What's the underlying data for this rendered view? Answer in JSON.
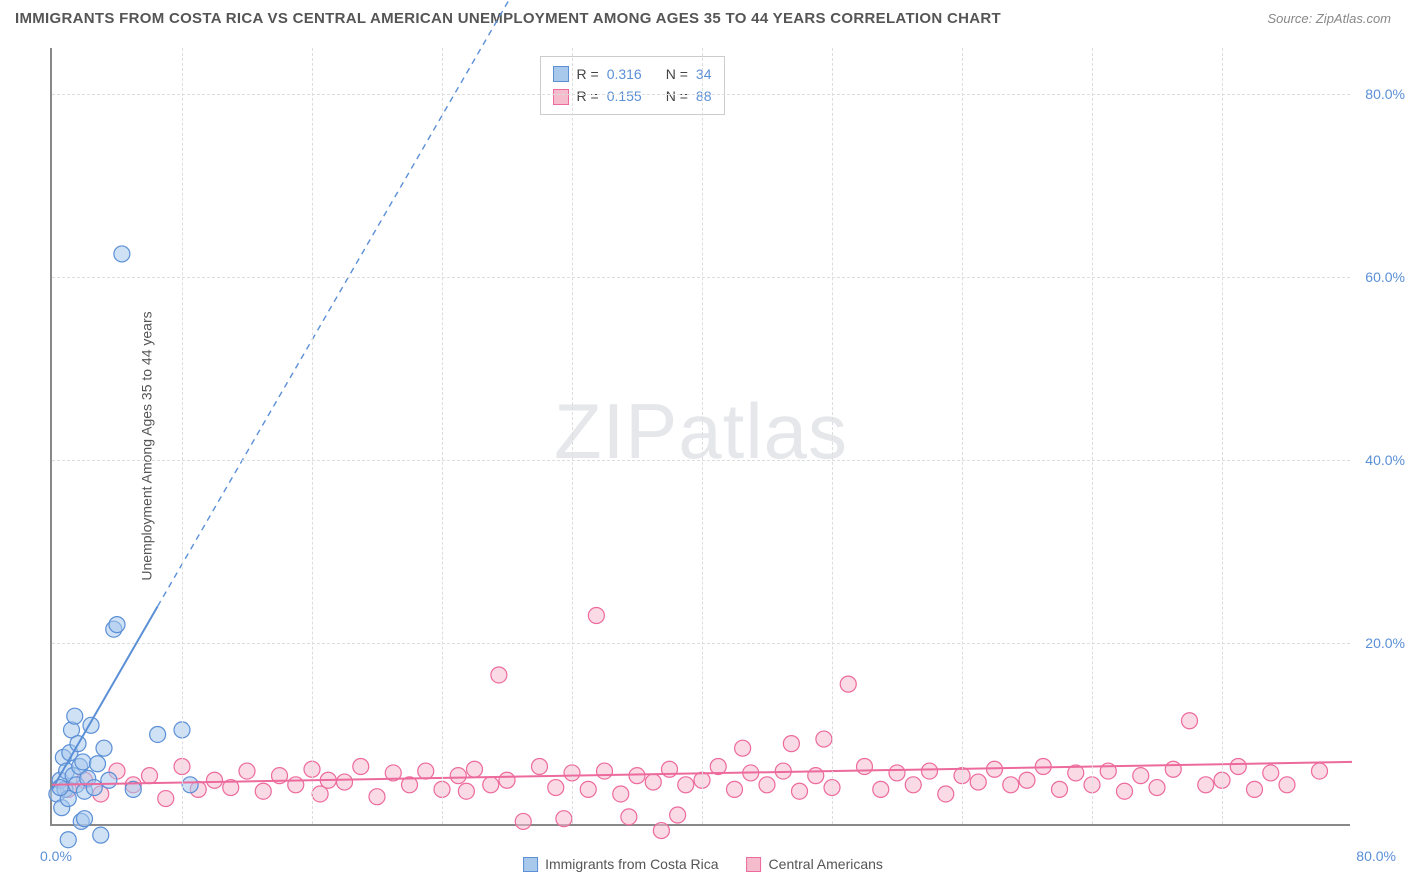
{
  "title": "IMMIGRANTS FROM COSTA RICA VS CENTRAL AMERICAN UNEMPLOYMENT AMONG AGES 35 TO 44 YEARS CORRELATION CHART",
  "source_label": "Source: ZipAtlas.com",
  "y_axis_label": "Unemployment Among Ages 35 to 44 years",
  "chart": {
    "type": "scatter",
    "xlim": [
      0,
      80
    ],
    "ylim": [
      0,
      85
    ],
    "x_tick_step": 8,
    "y_ticks": [
      20,
      40,
      60,
      80
    ],
    "y_tick_labels": [
      "20.0%",
      "40.0%",
      "60.0%",
      "80.0%"
    ],
    "x_origin_label": "0.0%",
    "x_max_label": "80.0%",
    "background_color": "#ffffff",
    "grid_color": "#dddddd",
    "axis_color": "#888888",
    "tick_label_color": "#5b8fd6",
    "marker_radius": 8,
    "marker_opacity": 0.55,
    "line_width": 2,
    "dashed_pattern": "6,5"
  },
  "series": {
    "blue": {
      "label": "Immigrants from Costa Rica",
      "fill": "#a8c8ec",
      "stroke": "#5b8fd6",
      "r_value": "0.316",
      "n_value": "34",
      "trend": {
        "x1": 0,
        "y1": 4,
        "x2": 6.5,
        "y2": 24,
        "dash_x2": 30,
        "dash_y2": 96
      },
      "points": [
        [
          0.3,
          3.5
        ],
        [
          0.5,
          5.0
        ],
        [
          0.6,
          2.0
        ],
        [
          0.7,
          7.5
        ],
        [
          0.8,
          4.0
        ],
        [
          0.9,
          6.0
        ],
        [
          1.0,
          3.0
        ],
        [
          1.1,
          8.0
        ],
        [
          1.2,
          10.5
        ],
        [
          1.3,
          5.5
        ],
        [
          1.4,
          12.0
        ],
        [
          1.5,
          4.5
        ],
        [
          1.6,
          9.0
        ],
        [
          1.7,
          6.5
        ],
        [
          1.8,
          0.5
        ],
        [
          1.9,
          7.0
        ],
        [
          2.0,
          3.8
        ],
        [
          2.2,
          5.2
        ],
        [
          2.4,
          11.0
        ],
        [
          2.6,
          4.2
        ],
        [
          2.8,
          6.8
        ],
        [
          3.0,
          -1.0
        ],
        [
          3.2,
          8.5
        ],
        [
          3.5,
          5.0
        ],
        [
          3.8,
          21.5
        ],
        [
          4.0,
          22.0
        ],
        [
          4.3,
          62.5
        ],
        [
          5.0,
          4.0
        ],
        [
          6.5,
          10.0
        ],
        [
          8.0,
          10.5
        ],
        [
          8.5,
          4.5
        ],
        [
          1.0,
          -1.5
        ],
        [
          2.0,
          0.8
        ],
        [
          0.5,
          4.2
        ]
      ]
    },
    "pink": {
      "label": "Central Americans",
      "fill": "#f5bcce",
      "stroke": "#ec6a9c",
      "r_value": "0.155",
      "n_value": "88",
      "trend": {
        "x1": 0,
        "y1": 4.5,
        "x2": 80,
        "y2": 7.0
      },
      "points": [
        [
          1.0,
          4.0
        ],
        [
          2.0,
          5.0
        ],
        [
          3.0,
          3.5
        ],
        [
          4.0,
          6.0
        ],
        [
          5.0,
          4.5
        ],
        [
          6.0,
          5.5
        ],
        [
          7.0,
          3.0
        ],
        [
          8.0,
          6.5
        ],
        [
          9.0,
          4.0
        ],
        [
          10.0,
          5.0
        ],
        [
          11.0,
          4.2
        ],
        [
          12.0,
          6.0
        ],
        [
          13.0,
          3.8
        ],
        [
          14.0,
          5.5
        ],
        [
          15.0,
          4.5
        ],
        [
          16.0,
          6.2
        ],
        [
          16.5,
          3.5
        ],
        [
          17.0,
          5.0
        ],
        [
          18.0,
          4.8
        ],
        [
          19.0,
          6.5
        ],
        [
          20.0,
          3.2
        ],
        [
          21.0,
          5.8
        ],
        [
          22.0,
          4.5
        ],
        [
          23.0,
          6.0
        ],
        [
          24.0,
          4.0
        ],
        [
          25.0,
          5.5
        ],
        [
          25.5,
          3.8
        ],
        [
          26.0,
          6.2
        ],
        [
          27.0,
          4.5
        ],
        [
          27.5,
          16.5
        ],
        [
          28.0,
          5.0
        ],
        [
          29.0,
          0.5
        ],
        [
          30.0,
          6.5
        ],
        [
          31.0,
          4.2
        ],
        [
          31.5,
          0.8
        ],
        [
          32.0,
          5.8
        ],
        [
          33.0,
          4.0
        ],
        [
          33.5,
          23.0
        ],
        [
          34.0,
          6.0
        ],
        [
          35.0,
          3.5
        ],
        [
          35.5,
          1.0
        ],
        [
          36.0,
          5.5
        ],
        [
          37.0,
          4.8
        ],
        [
          37.5,
          -0.5
        ],
        [
          38.0,
          6.2
        ],
        [
          38.5,
          1.2
        ],
        [
          39.0,
          4.5
        ],
        [
          40.0,
          5.0
        ],
        [
          41.0,
          6.5
        ],
        [
          42.0,
          4.0
        ],
        [
          42.5,
          8.5
        ],
        [
          43.0,
          5.8
        ],
        [
          44.0,
          4.5
        ],
        [
          45.0,
          6.0
        ],
        [
          45.5,
          9.0
        ],
        [
          46.0,
          3.8
        ],
        [
          47.0,
          5.5
        ],
        [
          47.5,
          9.5
        ],
        [
          48.0,
          4.2
        ],
        [
          49.0,
          15.5
        ],
        [
          50.0,
          6.5
        ],
        [
          51.0,
          4.0
        ],
        [
          52.0,
          5.8
        ],
        [
          53.0,
          4.5
        ],
        [
          54.0,
          6.0
        ],
        [
          55.0,
          3.5
        ],
        [
          56.0,
          5.5
        ],
        [
          57.0,
          4.8
        ],
        [
          58.0,
          6.2
        ],
        [
          59.0,
          4.5
        ],
        [
          60.0,
          5.0
        ],
        [
          61.0,
          6.5
        ],
        [
          62.0,
          4.0
        ],
        [
          63.0,
          5.8
        ],
        [
          64.0,
          4.5
        ],
        [
          65.0,
          6.0
        ],
        [
          66.0,
          3.8
        ],
        [
          67.0,
          5.5
        ],
        [
          68.0,
          4.2
        ],
        [
          69.0,
          6.2
        ],
        [
          70.0,
          11.5
        ],
        [
          71.0,
          4.5
        ],
        [
          72.0,
          5.0
        ],
        [
          73.0,
          6.5
        ],
        [
          74.0,
          4.0
        ],
        [
          75.0,
          5.8
        ],
        [
          76.0,
          4.5
        ],
        [
          78.0,
          6.0
        ]
      ]
    }
  },
  "legend": {
    "stats_prefix_r": "R =",
    "stats_prefix_n": "N ="
  },
  "watermark": {
    "part1": "ZIP",
    "part2": "atlas"
  }
}
